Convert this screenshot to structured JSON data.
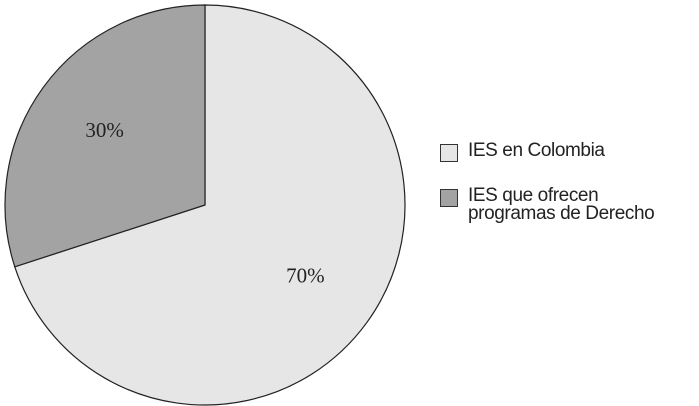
{
  "chart_data": {
    "type": "pie",
    "categories": [
      "IES en Colombia",
      "IES que ofrecen\nprogramas de Derecho"
    ],
    "values": [
      70,
      30
    ],
    "value_labels": [
      "70%",
      "30%"
    ],
    "colors": [
      "#e6e6e6",
      "#a3a3a3"
    ],
    "legend": "right"
  }
}
